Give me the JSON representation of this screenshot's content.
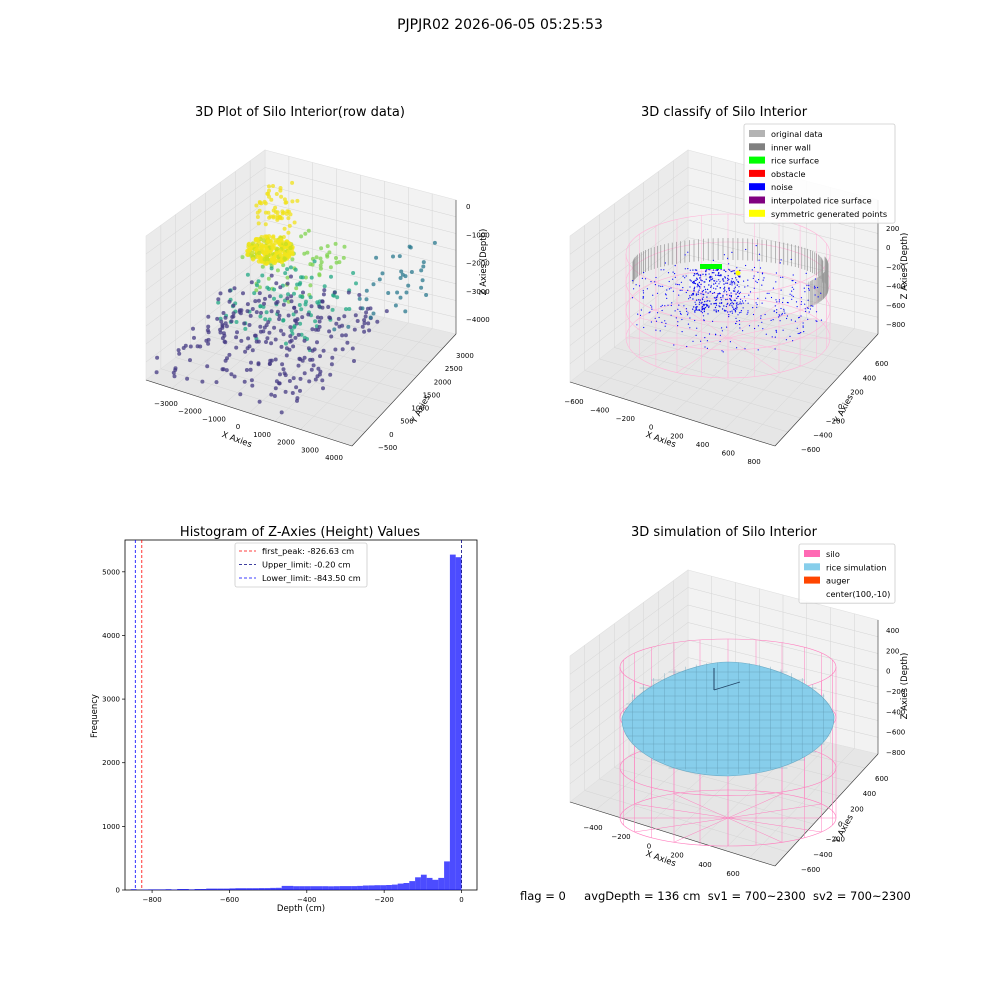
{
  "figure": {
    "suptitle": "PJPJR02 2026-06-05 05:25:53",
    "stats": {
      "flag": "flag = 0",
      "avg_depth": "avgDepth = 136 cm",
      "sv1": "sv1 = 700~2300",
      "sv2": "sv2 = 700~2300"
    }
  },
  "chart_data": [
    {
      "id": "raw",
      "type": "scatter3d",
      "title": "3D Plot of Silo Interior(row data)",
      "xlabel": "X Axies",
      "ylabel": "Y Axies",
      "zlabel": "Z Axies (Depth)",
      "xticks": [
        -3000,
        -2000,
        -1000,
        0,
        1000,
        2000,
        3000,
        4000
      ],
      "yticks": [
        -500,
        0,
        500,
        1000,
        1500,
        2000,
        2500,
        3000
      ],
      "zticks": [
        0,
        -1000,
        -2000,
        -3000,
        -4000
      ],
      "colormap": "viridis",
      "clusters": [
        {
          "x": [
            -2200,
            -1400
          ],
          "y": [
            1900,
            2800
          ],
          "z": [
            -1900,
            -600
          ],
          "n": 60,
          "color": "#f0e11a"
        },
        {
          "x": [
            -1500,
            800
          ],
          "y": [
            900,
            2600
          ],
          "z": [
            -2400,
            -1500
          ],
          "n": 55,
          "color": "#7fd34e"
        },
        {
          "x": [
            -1800,
            1500
          ],
          "y": [
            400,
            2200
          ],
          "z": [
            -3200,
            -2200
          ],
          "n": 90,
          "color": "#22a884"
        },
        {
          "x": [
            -2800,
            2200
          ],
          "y": [
            -400,
            2600
          ],
          "z": [
            -4100,
            -3000
          ],
          "n": 260,
          "color": "#443983"
        },
        {
          "x": [
            2200,
            4100
          ],
          "y": [
            600,
            2700
          ],
          "z": [
            -2600,
            -1200
          ],
          "n": 35,
          "color": "#2a788e"
        }
      ]
    },
    {
      "id": "classify",
      "type": "scatter3d",
      "title": "3D classify of Silo Interior",
      "xlabel": "X Axies",
      "ylabel": "Y Axies",
      "zlabel": "Z Axies (Depth)",
      "xticks": [
        -600,
        -400,
        -200,
        0,
        200,
        400,
        600,
        800
      ],
      "yticks": [
        -600,
        -400,
        -200,
        0,
        200,
        400,
        600
      ],
      "zticks": [
        200,
        0,
        -200,
        -400,
        -600,
        -800
      ],
      "legend_position": "upper right",
      "legend": [
        {
          "label": "original data",
          "color": "#b3b3b3"
        },
        {
          "label": "inner wall",
          "color": "#808080"
        },
        {
          "label": "rice surface",
          "color": "#00ff00"
        },
        {
          "label": "obstacle",
          "color": "#ff0000"
        },
        {
          "label": "noise",
          "color": "#0000ff"
        },
        {
          "label": "interpolated rice surface",
          "color": "#800080"
        },
        {
          "label": "symmetric generated points",
          "color": "#ffff00"
        }
      ],
      "clusters": [
        {
          "x": [
            -120,
            150
          ],
          "y": [
            -100,
            150
          ],
          "z": [
            -500,
            -150
          ],
          "n": 320,
          "color": "#0000ff"
        },
        {
          "x": [
            -40,
            40
          ],
          "y": [
            0,
            60
          ],
          "z": [
            -200,
            -180
          ],
          "n": 10,
          "color": "#00ff00"
        },
        {
          "x": [
            110,
            140
          ],
          "y": [
            -20,
            20
          ],
          "z": [
            -260,
            -230
          ],
          "n": 5,
          "color": "#ffff00"
        }
      ]
    },
    {
      "id": "hist",
      "type": "bar",
      "title": "Histogram of Z-Axies (Height) Values",
      "xlabel": "Depth (cm)",
      "ylabel": "Frequency",
      "xlim": [
        -870,
        40
      ],
      "ylim": [
        0,
        5500
      ],
      "xticks": [
        -800,
        -600,
        -400,
        -200,
        0
      ],
      "yticks": [
        0,
        1000,
        2000,
        3000,
        4000,
        5000
      ],
      "color": "#0000ff",
      "bin_width": 15,
      "bin_start": -855,
      "counts": [
        12,
        3,
        8,
        10,
        10,
        10,
        12,
        8,
        15,
        15,
        10,
        15,
        15,
        22,
        22,
        22,
        22,
        25,
        28,
        28,
        28,
        28,
        30,
        30,
        33,
        35,
        65,
        65,
        60,
        60,
        60,
        60,
        60,
        60,
        58,
        60,
        62,
        62,
        62,
        65,
        70,
        72,
        75,
        75,
        78,
        85,
        100,
        110,
        140,
        200,
        240,
        190,
        160,
        190,
        450,
        5270,
        5230
      ],
      "vlines": [
        {
          "x": -826.63,
          "color": "#ff0000",
          "label": "first_peak: -826.63 cm"
        },
        {
          "x": -0.2,
          "color": "#000080",
          "label": "Upper_limit: -0.20 cm"
        },
        {
          "x": -843.5,
          "color": "#0000ff",
          "label": "Lower_limit: -843.50 cm"
        }
      ],
      "legend_position": "upper center"
    },
    {
      "id": "sim",
      "type": "surface3d",
      "title": "3D simulation of Silo Interior",
      "xlabel": "X Axies",
      "ylabel": "Y Axies",
      "zlabel": "Z Axies (Depth)",
      "xticks": [
        -400,
        -200,
        0,
        200,
        400,
        600
      ],
      "yticks": [
        -600,
        -400,
        -200,
        0,
        200,
        400,
        600
      ],
      "zticks": [
        400,
        200,
        0,
        -200,
        -400,
        -600,
        -800
      ],
      "legend_position": "upper right",
      "legend": [
        {
          "label": "silo",
          "color": "#ff69b4"
        },
        {
          "label": "rice simulation",
          "color": "#87ceeb"
        },
        {
          "label": "auger",
          "color": "#ff4500"
        },
        {
          "label": "center(100,-10)",
          "color": ""
        }
      ]
    }
  ]
}
